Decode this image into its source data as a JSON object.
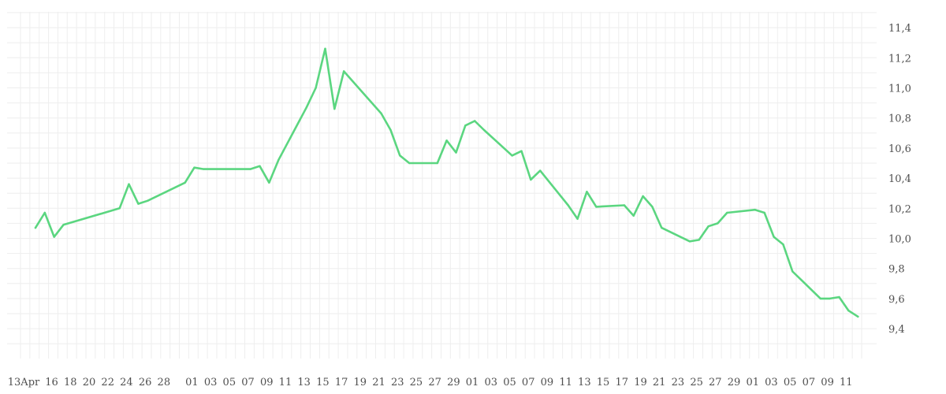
{
  "chart_data": {
    "type": "line",
    "title": "",
    "xlabel": "",
    "ylabel": "",
    "ylim": [
      9.0,
      11.5
    ],
    "y_ticks": [
      "11,4",
      "11,2",
      "11,0",
      "10,8",
      "10,6",
      "10,4",
      "10,2",
      "10,0",
      "9,8",
      "9,6",
      "9,4"
    ],
    "y_tick_values": [
      11.4,
      11.2,
      11.0,
      10.8,
      10.6,
      10.4,
      10.2,
      10.0,
      9.8,
      9.6,
      9.4
    ],
    "x_ticks": [
      "13Apr",
      "16",
      "18",
      "20",
      "22",
      "24",
      "26",
      "28",
      "01",
      "03",
      "05",
      "07",
      "09",
      "11",
      "13",
      "15",
      "17",
      "19",
      "21",
      "23",
      "25",
      "27",
      "29",
      "01",
      "03",
      "05",
      "07",
      "09",
      "11",
      "13",
      "15",
      "17",
      "19",
      "21",
      "23",
      "25",
      "27",
      "29",
      "01",
      "03",
      "05",
      "07",
      "09",
      "11"
    ],
    "x_tick_days": [
      0,
      3,
      5,
      7,
      9,
      11,
      13,
      15,
      18,
      20,
      22,
      24,
      26,
      28,
      30,
      32,
      34,
      36,
      38,
      40,
      42,
      44,
      46,
      48,
      50,
      52,
      54,
      56,
      58,
      60,
      62,
      64,
      66,
      68,
      70,
      72,
      74,
      76,
      78,
      80,
      82,
      84,
      86,
      88
    ],
    "x_day_range": [
      0,
      90
    ],
    "grid": true,
    "colors": {
      "line": "#5bd680",
      "grid": "#eeeeee",
      "text": "#4f4f4f"
    },
    "series": [
      {
        "x": [
          1.6,
          2.6,
          3.6,
          4.6,
          10.6,
          11.6,
          12.6,
          13.6,
          17.6,
          18.6,
          19.6,
          24.6,
          25.6,
          26.6,
          27.6,
          30.6,
          31.6,
          32.6,
          33.6,
          34.6,
          38.6,
          39.6,
          40.6,
          41.6,
          44.6,
          45.6,
          46.6,
          47.6,
          48.6,
          49.6,
          52.6,
          53.6,
          54.6,
          55.6,
          58.6,
          59.6,
          60.6,
          61.6,
          64.6,
          65.6,
          66.6,
          67.6,
          68.6,
          71.6,
          72.6,
          73.6,
          74.6,
          75.6,
          78.6,
          79.6,
          80.6,
          81.6,
          82.6,
          85.6,
          86.6,
          87.6,
          88.6,
          89.6
        ],
        "y": [
          10.07,
          10.17,
          10.01,
          10.09,
          10.2,
          10.36,
          10.23,
          10.25,
          10.37,
          10.47,
          10.46,
          10.46,
          10.48,
          10.37,
          10.52,
          10.87,
          11.0,
          11.26,
          10.86,
          11.11,
          10.83,
          10.72,
          10.55,
          10.5,
          10.5,
          10.65,
          10.57,
          10.75,
          10.78,
          10.72,
          10.55,
          10.58,
          10.39,
          10.45,
          10.22,
          10.13,
          10.31,
          10.21,
          10.22,
          10.15,
          10.28,
          10.21,
          10.07,
          9.98,
          9.99,
          10.08,
          10.1,
          10.17,
          10.19,
          10.17,
          10.01,
          9.96,
          9.78,
          9.6,
          9.6,
          9.61,
          9.52,
          9.48
        ]
      }
    ]
  }
}
